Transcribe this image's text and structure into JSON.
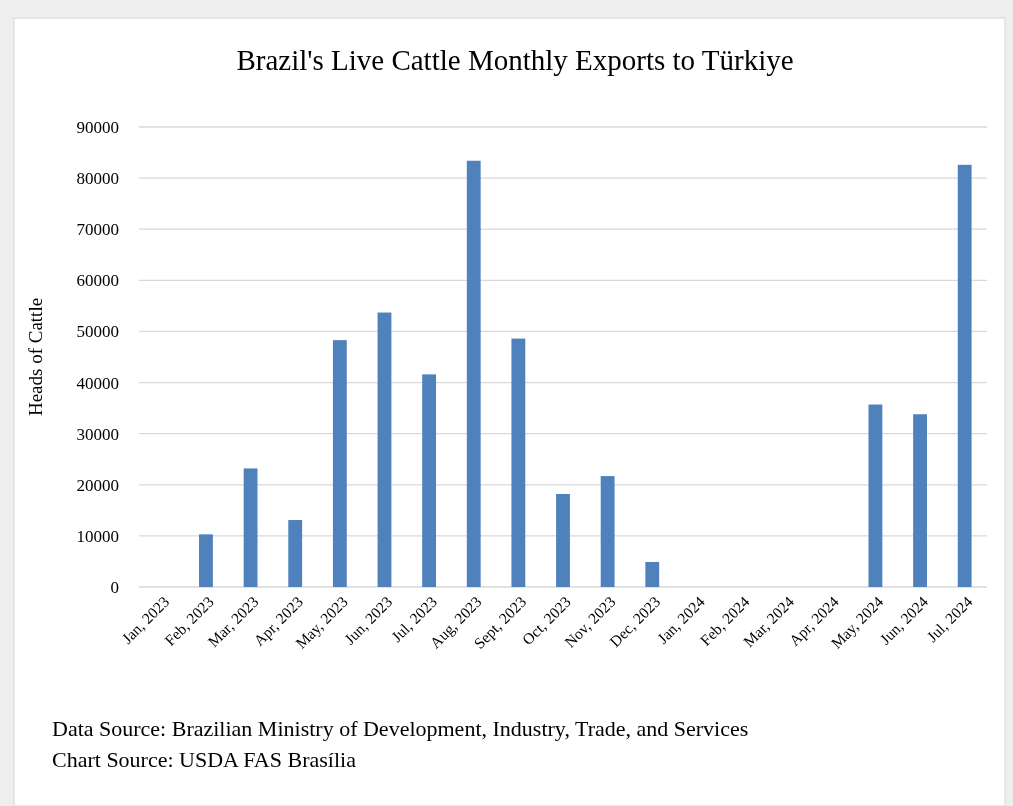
{
  "chart_data": {
    "type": "bar",
    "title": "Brazil's Live Cattle Monthly Exports to Türkiye",
    "ylabel": "Heads of Cattle",
    "categories": [
      "Jan, 2023",
      "Feb, 2023",
      "Mar, 2023",
      "Apr, 2023",
      "May, 2023",
      "Jun, 2023",
      "Jul, 2023",
      "Aug, 2023",
      "Sept, 2023",
      "Oct, 2023",
      "Nov, 2023",
      "Dec, 2023",
      "Jan, 2024",
      "Feb, 2024",
      "Mar, 2024",
      "Apr, 2024",
      "May, 2024",
      "Jun, 2024",
      "Jul, 2024"
    ],
    "values": [
      null,
      10300,
      23200,
      13100,
      48300,
      53700,
      41600,
      83400,
      48600,
      18200,
      21700,
      4900,
      null,
      null,
      null,
      null,
      35700,
      33800,
      82600
    ],
    "color": "#4f81bd",
    "ylim": [
      0,
      90000
    ],
    "yticks": [
      0,
      10000,
      20000,
      30000,
      40000,
      50000,
      60000,
      70000,
      80000,
      90000
    ],
    "grid": "y",
    "annotations": [
      "Data Source: Brazilian Ministry of Development, Industry, Trade, and Services",
      "Chart Source: USDA FAS Brasília"
    ]
  }
}
